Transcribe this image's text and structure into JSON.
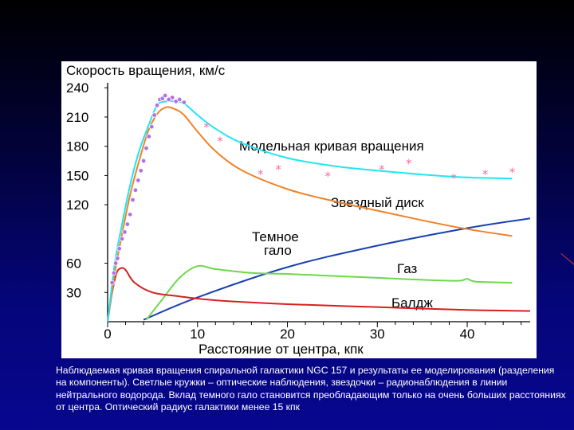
{
  "colors": {
    "model": "#1fe6f0",
    "disk": "#f08228",
    "halo": "#1840b0",
    "gas": "#6ed84a",
    "bulge": "#d81f1f",
    "observations": "#b070e8",
    "radio": "#f070a8",
    "axis": "#000000"
  },
  "caption": "Наблюдаемая кривая вращения спиральной галактики NGC 157 и результаты ее моделирования (разделения на компоненты). Светлые кружки – оптические наблюдения, звездочки – радионаблюдения в линии нейтрального водорода. Вклад темного гало становится преобладающим только на очень больших расстояниях от центра. Оптический радиус галактики менее 15 кпк",
  "chart_data": {
    "type": "line",
    "ylabel": "Скорость вращения, км/с",
    "xlabel": "Расстояние от центра, кпк",
    "xlim": [
      0,
      47
    ],
    "ylim": [
      0,
      250
    ],
    "x_ticks": [
      "0",
      "10",
      "20",
      "30",
      "40"
    ],
    "y_ticks": [
      "30",
      "60",
      "120",
      "150",
      "180",
      "210",
      "240"
    ],
    "series": [
      {
        "key": "model",
        "name": "Модельная кривая вращения",
        "points": [
          [
            0,
            0
          ],
          [
            0.8,
            60
          ],
          [
            1.5,
            95
          ],
          [
            2.5,
            140
          ],
          [
            3.5,
            175
          ],
          [
            4.5,
            200
          ],
          [
            5.5,
            222
          ],
          [
            6.5,
            226
          ],
          [
            7.5,
            226
          ],
          [
            8.5,
            224
          ],
          [
            10,
            212
          ],
          [
            12,
            198
          ],
          [
            15,
            183
          ],
          [
            20,
            168
          ],
          [
            25,
            160
          ],
          [
            30,
            155
          ],
          [
            35,
            151
          ],
          [
            40,
            148
          ],
          [
            45,
            147
          ]
        ]
      },
      {
        "key": "disk",
        "name": "Звездный диск",
        "points": [
          [
            0,
            0
          ],
          [
            0.8,
            50
          ],
          [
            1.5,
            85
          ],
          [
            2.5,
            130
          ],
          [
            3.5,
            165
          ],
          [
            4.5,
            195
          ],
          [
            5.5,
            213
          ],
          [
            6.5,
            220
          ],
          [
            7.5,
            218
          ],
          [
            8.5,
            212
          ],
          [
            10,
            195
          ],
          [
            12,
            175
          ],
          [
            15,
            155
          ],
          [
            20,
            136
          ],
          [
            25,
            124
          ],
          [
            30,
            114
          ],
          [
            35,
            104
          ],
          [
            40,
            95
          ],
          [
            45,
            88
          ]
        ]
      },
      {
        "key": "halo",
        "name": "Темное гало",
        "points": [
          [
            4,
            2
          ],
          [
            10,
            25
          ],
          [
            20,
            56
          ],
          [
            30,
            78
          ],
          [
            40,
            96
          ],
          [
            47,
            106
          ]
        ]
      },
      {
        "key": "gas",
        "name": "Газ",
        "points": [
          [
            4.3,
            2
          ],
          [
            6,
            22
          ],
          [
            8,
            45
          ],
          [
            10,
            57
          ],
          [
            12,
            54
          ],
          [
            16,
            50
          ],
          [
            20,
            49
          ],
          [
            25,
            47
          ],
          [
            30,
            45
          ],
          [
            35,
            43
          ],
          [
            39,
            42
          ],
          [
            40,
            44
          ],
          [
            41,
            41
          ],
          [
            45,
            40
          ]
        ]
      },
      {
        "key": "bulge",
        "name": "Балдж",
        "points": [
          [
            0,
            0
          ],
          [
            0.5,
            30
          ],
          [
            1,
            50
          ],
          [
            1.5,
            55
          ],
          [
            2,
            53
          ],
          [
            3,
            40
          ],
          [
            5,
            30
          ],
          [
            8,
            26
          ],
          [
            12,
            22
          ],
          [
            20,
            18
          ],
          [
            30,
            15
          ],
          [
            40,
            12
          ],
          [
            47,
            11
          ]
        ]
      }
    ],
    "optical_points": [
      [
        0.5,
        40
      ],
      [
        0.7,
        50
      ],
      [
        0.9,
        60
      ],
      [
        1.1,
        65
      ],
      [
        1.3,
        75
      ],
      [
        1.6,
        85
      ],
      [
        1.9,
        92
      ],
      [
        2.2,
        100
      ],
      [
        2.5,
        110
      ],
      [
        2.8,
        125
      ],
      [
        3.1,
        135
      ],
      [
        3.4,
        145
      ],
      [
        3.7,
        155
      ],
      [
        4,
        165
      ],
      [
        4.3,
        178
      ],
      [
        4.6,
        190
      ],
      [
        4.9,
        200
      ],
      [
        5.2,
        212
      ],
      [
        5.5,
        222
      ],
      [
        5.8,
        228
      ],
      [
        6.1,
        229
      ],
      [
        6.4,
        232
      ],
      [
        6.8,
        228
      ],
      [
        7.2,
        230
      ],
      [
        7.6,
        226
      ],
      [
        8,
        228
      ],
      [
        8.5,
        225
      ]
    ],
    "radio_points": [
      [
        11,
        200
      ],
      [
        12.5,
        186
      ],
      [
        17,
        152
      ],
      [
        19,
        157
      ],
      [
        24.5,
        150
      ],
      [
        30.5,
        157
      ],
      [
        33.5,
        163
      ],
      [
        38.5,
        148
      ],
      [
        42,
        152
      ],
      [
        45,
        154
      ]
    ],
    "annotations": [
      "Модельная кривая вращения",
      "Звездный диск",
      "Темное",
      "гало",
      "Газ",
      "Балдж"
    ]
  }
}
